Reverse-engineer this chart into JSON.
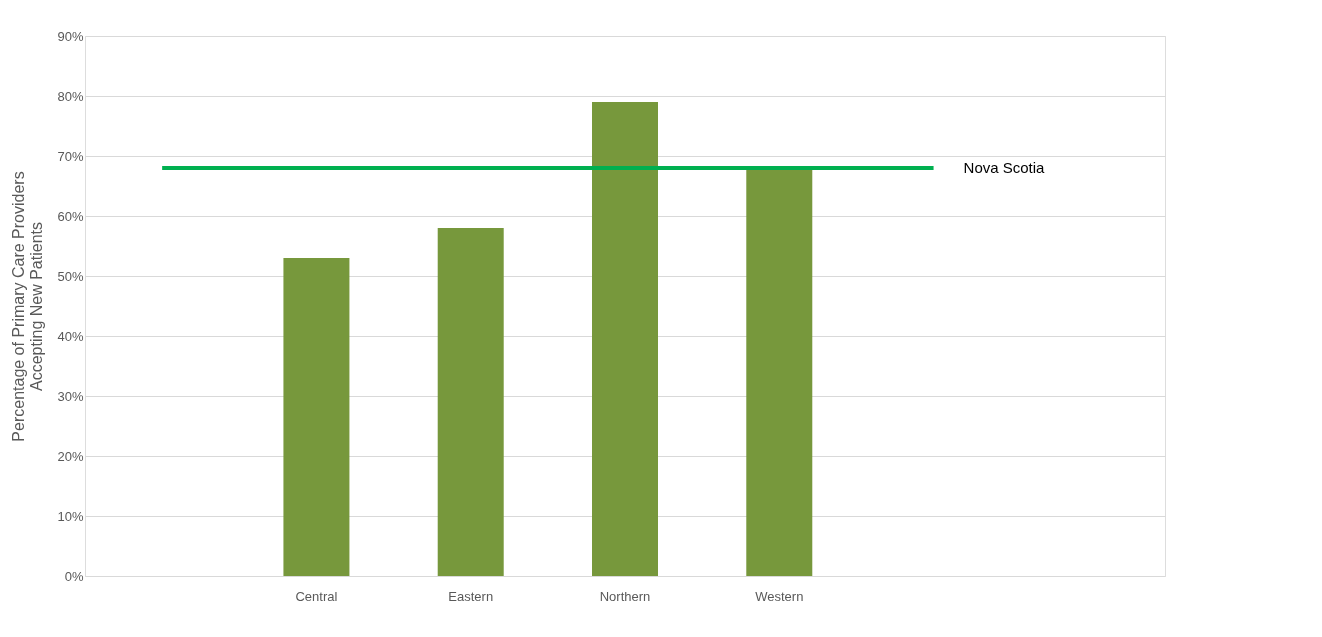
{
  "chart_data": {
    "type": "bar",
    "ylabel": "Percentage of Primary Care Providers\nAccepting New Patients",
    "categories": [
      null,
      "Central",
      "Eastern",
      "Northern",
      "Western",
      null,
      null
    ],
    "series": [
      {
        "type": "bar",
        "color": "#77983c",
        "values": [
          null,
          53,
          58,
          79,
          68,
          null,
          null
        ]
      },
      {
        "type": "line",
        "name": "Nova Scotia",
        "color": "#00b050",
        "values": [
          68,
          68,
          68,
          68,
          68,
          68,
          null
        ]
      }
    ],
    "ylim": [
      0,
      90
    ],
    "yticks": [
      {
        "value": 0,
        "label": "0%"
      },
      {
        "value": 10,
        "label": "10%"
      },
      {
        "value": 20,
        "label": "20%"
      },
      {
        "value": 30,
        "label": "30%"
      },
      {
        "value": 40,
        "label": "40%"
      },
      {
        "value": 50,
        "label": "50%"
      },
      {
        "value": 60,
        "label": "60%"
      },
      {
        "value": 70,
        "label": "70%"
      },
      {
        "value": 80,
        "label": "80%"
      },
      {
        "value": 90,
        "label": "90%"
      }
    ],
    "grid": "y",
    "legend": false,
    "marker": "none",
    "line_style": "solid"
  }
}
